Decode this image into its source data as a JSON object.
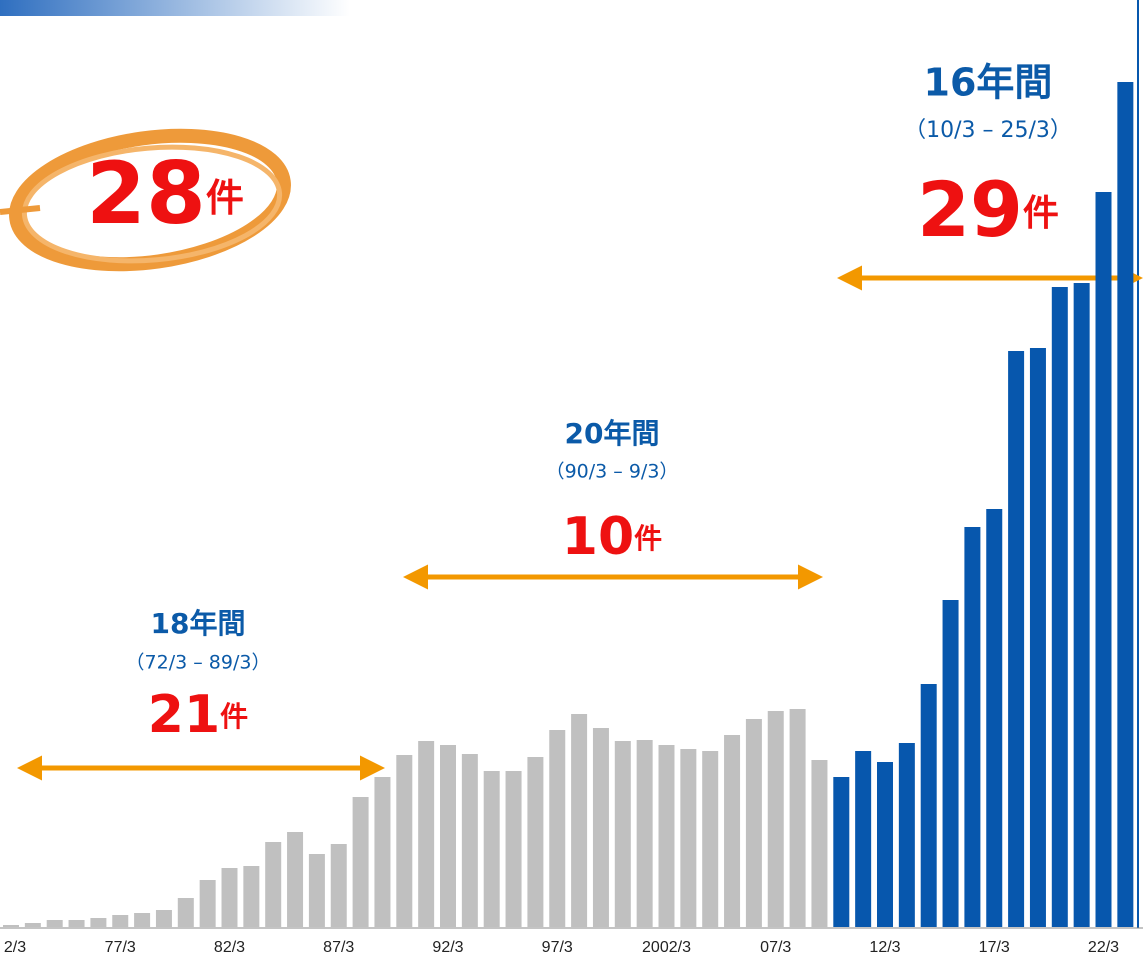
{
  "chart_data": {
    "type": "bar",
    "categories": [
      "2/3",
      null,
      null,
      null,
      null,
      "77/3",
      null,
      null,
      null,
      null,
      "82/3",
      null,
      null,
      null,
      null,
      "87/3",
      null,
      null,
      null,
      null,
      "92/3",
      null,
      null,
      null,
      null,
      "97/3",
      null,
      null,
      null,
      null,
      "2002/3",
      null,
      null,
      null,
      null,
      "07/3",
      null,
      null,
      null,
      null,
      "12/3",
      null,
      null,
      null,
      null,
      "17/3",
      null,
      null,
      null,
      null,
      "22/3",
      null
    ],
    "series": [
      {
        "color": "#c0c0c0",
        "values": [
          2,
          4,
          7,
          7,
          9,
          12,
          14,
          17,
          29,
          47,
          59,
          61,
          85,
          95,
          73,
          83,
          130,
          150,
          172,
          186,
          182,
          173,
          156,
          156,
          170,
          197,
          213,
          199,
          186,
          187,
          182,
          178,
          176,
          192,
          208,
          216,
          218,
          167,
          null,
          null,
          null,
          null,
          null,
          null,
          null,
          null,
          null,
          null,
          null,
          null,
          null,
          null
        ]
      },
      {
        "color": "#0757ad",
        "values": [
          null,
          null,
          null,
          null,
          null,
          null,
          null,
          null,
          null,
          null,
          null,
          null,
          null,
          null,
          null,
          null,
          null,
          null,
          null,
          null,
          null,
          null,
          null,
          null,
          null,
          null,
          null,
          null,
          null,
          null,
          null,
          null,
          null,
          null,
          null,
          null,
          null,
          null,
          150,
          176,
          165,
          184,
          243,
          327,
          400,
          418,
          576,
          579,
          640,
          644,
          735,
          845
        ]
      }
    ],
    "ylim": [
      0,
      850
    ],
    "annotations": [
      {
        "title": "18年間",
        "range": "（72/3 – 89/3）",
        "count": "21",
        "unit": "件"
      },
      {
        "title": "20年間",
        "range": "（90/3 – 9/3）",
        "count": "10",
        "unit": "件"
      },
      {
        "title": "16年間",
        "range": "（10/3 – 25/3）",
        "count": "29",
        "unit": "件"
      }
    ],
    "badge": {
      "count": "28",
      "unit": "件"
    }
  }
}
